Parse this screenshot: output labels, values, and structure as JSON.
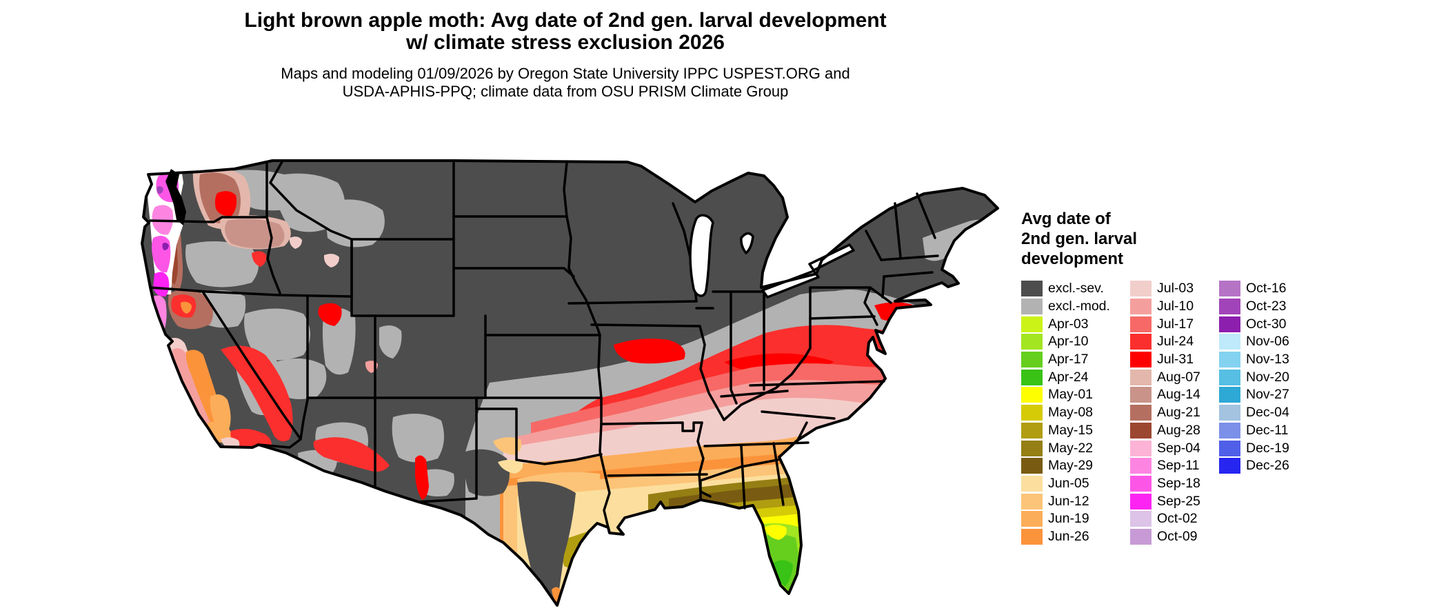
{
  "title": {
    "line1": "Light brown apple moth: Avg date of 2nd gen. larval development",
    "line2": "w/ climate stress exclusion 2026"
  },
  "subtitle": {
    "line1": "Maps and modeling 01/09/2026 by Oregon State University IPPC USPEST.ORG and",
    "line2": "USDA-APHIS-PPQ; climate data from OSU PRISM Climate Group"
  },
  "legend": {
    "title_lines": [
      "Avg date of",
      "2nd gen. larval",
      "development"
    ],
    "columns": [
      {
        "items": [
          {
            "label": "excl.-sev.",
            "color": "#4d4d4d"
          },
          {
            "label": "excl.-mod.",
            "color": "#b2b2b2"
          },
          {
            "label": "Apr-03",
            "color": "#cbf318"
          },
          {
            "label": "Apr-10",
            "color": "#a2e520"
          },
          {
            "label": "Apr-17",
            "color": "#66cf1e"
          },
          {
            "label": "Apr-24",
            "color": "#38c316"
          },
          {
            "label": "May-01",
            "color": "#fefe00"
          },
          {
            "label": "May-08",
            "color": "#d6cb07"
          },
          {
            "label": "May-15",
            "color": "#b19d10"
          },
          {
            "label": "May-22",
            "color": "#957f14"
          },
          {
            "label": "May-29",
            "color": "#795c11"
          },
          {
            "label": "Jun-05",
            "color": "#fcdf9e"
          },
          {
            "label": "Jun-12",
            "color": "#fcc478"
          },
          {
            "label": "Jun-19",
            "color": "#fcad59"
          },
          {
            "label": "Jun-26",
            "color": "#fb933b"
          }
        ]
      },
      {
        "items": [
          {
            "label": "Jul-03",
            "color": "#f2cecb"
          },
          {
            "label": "Jul-10",
            "color": "#f49f9d"
          },
          {
            "label": "Jul-17",
            "color": "#f76966"
          },
          {
            "label": "Jul-24",
            "color": "#fb2f2d"
          },
          {
            "label": "Jul-31",
            "color": "#fe0000"
          },
          {
            "label": "Aug-07",
            "color": "#e3b7ac"
          },
          {
            "label": "Aug-14",
            "color": "#c9938a"
          },
          {
            "label": "Aug-21",
            "color": "#b56f60"
          },
          {
            "label": "Aug-28",
            "color": "#9c4730"
          },
          {
            "label": "Sep-04",
            "color": "#fdb3d6"
          },
          {
            "label": "Sep-11",
            "color": "#fd85e1"
          },
          {
            "label": "Sep-18",
            "color": "#fd56e7"
          },
          {
            "label": "Sep-25",
            "color": "#fd24f3"
          },
          {
            "label": "Oct-02",
            "color": "#dcc3e7"
          },
          {
            "label": "Oct-09",
            "color": "#c79ad5"
          }
        ]
      },
      {
        "items": [
          {
            "label": "Oct-16",
            "color": "#b573c6"
          },
          {
            "label": "Oct-23",
            "color": "#a244b9"
          },
          {
            "label": "Oct-30",
            "color": "#8c1fae"
          },
          {
            "label": "Nov-06",
            "color": "#bfeafb"
          },
          {
            "label": "Nov-13",
            "color": "#83d2ef"
          },
          {
            "label": "Nov-20",
            "color": "#56bfe3"
          },
          {
            "label": "Nov-27",
            "color": "#2ea8d5"
          },
          {
            "label": "Dec-04",
            "color": "#a3c3e1"
          },
          {
            "label": "Dec-11",
            "color": "#7b90e8"
          },
          {
            "label": "Dec-19",
            "color": "#4f5fe8"
          },
          {
            "label": "Dec-26",
            "color": "#2626f0"
          }
        ]
      }
    ]
  },
  "map": {
    "region": "Conterminous United States",
    "border_color": "#000000",
    "background_color": "#ffffff",
    "palette": {
      "exclsev": "#4d4d4d",
      "exclmod": "#b2b2b2",
      "apr03": "#cbf318",
      "apr10": "#a2e520",
      "apr17": "#66cf1e",
      "apr24": "#38c316",
      "may01": "#fefe00",
      "may08": "#d6cb07",
      "may15": "#b19d10",
      "may22": "#957f14",
      "may29": "#795c11",
      "jun05": "#fcdf9e",
      "jun12": "#fcc478",
      "jun19": "#fcad59",
      "jun26": "#fb933b",
      "jul03": "#f2cecb",
      "jul10": "#f49f9d",
      "jul17": "#f76966",
      "jul24": "#fb2f2d",
      "jul31": "#fe0000",
      "aug07": "#e3b7ac",
      "aug14": "#c9938a",
      "aug21": "#b56f60",
      "aug28": "#9c4730",
      "sep04": "#fdb3d6",
      "sep11": "#fd85e1",
      "sep18": "#fd56e7",
      "sep25": "#fd24f3",
      "oct02": "#dcc3e7",
      "oct09": "#c79ad5",
      "oct16": "#b573c6",
      "oct23": "#a244b9",
      "oct30": "#8c1fae",
      "nov06": "#bfeafb",
      "nov13": "#83d2ef",
      "nov20": "#56bfe3",
      "nov27": "#2ea8d5",
      "dec04": "#a3c3e1",
      "dec11": "#7b90e8",
      "dec19": "#4f5fe8",
      "dec26": "#2626f0",
      "water": "#ffffff",
      "ink": "#000000"
    }
  }
}
